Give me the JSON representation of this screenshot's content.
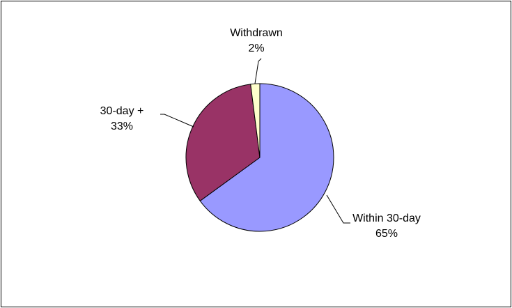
{
  "chart_data": {
    "type": "pie",
    "title": "",
    "categories": [
      "Within 30-day",
      "30-day +",
      "Withdrawn"
    ],
    "values": [
      65,
      33,
      2
    ],
    "value_labels": [
      "65%",
      "33%",
      "2%"
    ],
    "colors": [
      "#9999FF",
      "#993366",
      "#FFFFCC"
    ],
    "start_angle_deg": 0,
    "direction": "clockwise",
    "legend": "none",
    "label_style": "outside with leader lines"
  }
}
